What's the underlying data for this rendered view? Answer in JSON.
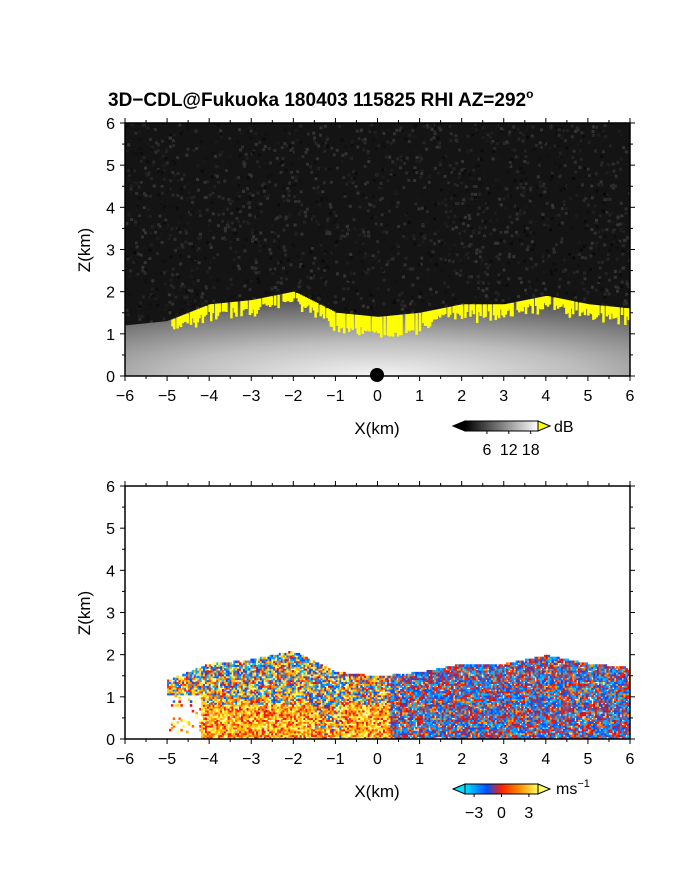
{
  "chart_data": [
    {
      "type": "heatmap",
      "title": "3D−CDL@Fukuoka 180403 115825 RHI AZ=292",
      "title_superscript": "o",
      "xlabel": "X(km)",
      "ylabel": "Z(km)",
      "xlim": [
        -6,
        6
      ],
      "ylim": [
        0,
        6
      ],
      "x_ticks": [
        "−6",
        "−5",
        "−4",
        "−3",
        "−2",
        "−1",
        "0",
        "1",
        "2",
        "3",
        "4",
        "5",
        "6"
      ],
      "y_ticks": [
        "0",
        "1",
        "2",
        "3",
        "4",
        "5",
        "6"
      ],
      "background_color": "#141414",
      "highlight_color": "#ffff00",
      "colorbar": {
        "unit": "dB",
        "tick_labels": [
          "6",
          "12",
          "18"
        ],
        "tick_values": [
          6,
          12,
          18
        ],
        "range": [
          0,
          20
        ],
        "colors": [
          "#000000",
          "#ffffff"
        ],
        "over_color": "#ffff00"
      },
      "regions": [
        {
          "kind": "gray-field",
          "top_profile": [
            [
              -6,
              1.2
            ],
            [
              -5,
              1.3
            ],
            [
              -4,
              1.7
            ],
            [
              -3,
              1.8
            ],
            [
              -2,
              2.0
            ],
            [
              -1,
              1.5
            ],
            [
              0,
              1.4
            ],
            [
              1,
              1.5
            ],
            [
              2,
              1.7
            ],
            [
              3,
              1.7
            ],
            [
              4,
              1.9
            ],
            [
              5,
              1.7
            ],
            [
              6,
              1.6
            ]
          ]
        },
        {
          "kind": "yellow-band",
          "x_range": [
            -5.0,
            6.0
          ],
          "z_range": [
            1.2,
            2.1
          ]
        }
      ]
    },
    {
      "type": "heatmap",
      "xlabel": "X(km)",
      "ylabel": "Z(km)",
      "xlim": [
        -6,
        6
      ],
      "ylim": [
        0,
        6
      ],
      "x_ticks": [
        "−6",
        "−5",
        "−4",
        "−3",
        "−2",
        "−1",
        "0",
        "1",
        "2",
        "3",
        "4",
        "5",
        "6"
      ],
      "y_ticks": [
        "0",
        "1",
        "2",
        "3",
        "4",
        "5",
        "6"
      ],
      "colorbar": {
        "unit": "ms",
        "unit_superscript": "−1",
        "tick_labels": [
          "−3",
          "0",
          "3"
        ],
        "tick_values": [
          -3,
          0,
          3
        ],
        "range": [
          -4,
          4
        ],
        "colors": [
          "#00e0ff",
          "#0050ff",
          "#ff2000",
          "#ffff60"
        ]
      },
      "regions": [
        {
          "kind": "velocity-field",
          "x_range": [
            -5.0,
            6.0
          ],
          "z_range": [
            0,
            2.1
          ]
        }
      ]
    }
  ]
}
